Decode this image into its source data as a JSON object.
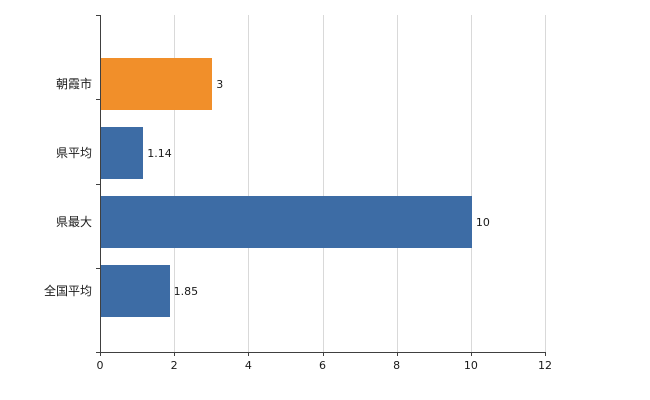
{
  "chart_data": {
    "type": "bar",
    "orientation": "horizontal",
    "title": "",
    "categories": [
      "朝霞市",
      "県平均",
      "県最大",
      "全国平均"
    ],
    "values": [
      3,
      1.14,
      10,
      1.85
    ],
    "value_labels": [
      "3",
      "1.14",
      "10",
      "1.85"
    ],
    "bar_colors": [
      "#f18f2a",
      "#3d6ca5",
      "#3d6ca5",
      "#3d6ca5"
    ],
    "xlabel": "",
    "ylabel": "",
    "xlim": [
      0,
      12
    ],
    "x_ticks": [
      0,
      2,
      4,
      6,
      8,
      10,
      12
    ],
    "grid": true,
    "legend": false
  },
  "colors": {
    "background": "#ffffff",
    "axis": "#404040",
    "gridline": "#d9d9d9",
    "text": "#1a1a1a",
    "orange": "#f18f2a",
    "blue": "#3d6ca5"
  }
}
